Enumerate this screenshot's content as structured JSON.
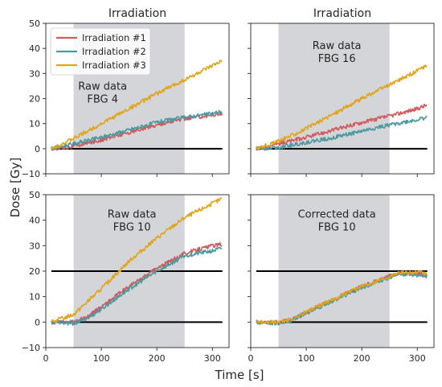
{
  "figure": {
    "ylabel": "Dose [Gy]",
    "xlabel": "Time [s]"
  },
  "colors": {
    "series1": "#d05a5e",
    "series2": "#4a9aa0",
    "series3": "#e0a51c",
    "band": "#d4d5d8",
    "reference": "#000000"
  },
  "chart_data": [
    {
      "type": "line",
      "title": "Irradiation",
      "annotation": [
        "Raw data",
        "FBG 4"
      ],
      "xlim": [
        0,
        330
      ],
      "ylim": [
        -10,
        50
      ],
      "xticks": [
        0,
        100,
        200,
        300
      ],
      "yticks": [
        -10,
        0,
        10,
        20,
        30,
        40,
        50
      ],
      "show_xtick_labels": false,
      "show_ytick_labels": true,
      "shaded_interval": [
        50,
        250
      ],
      "reference_lines": [
        0
      ],
      "legend": {
        "position": "top-left",
        "entries": [
          "Irradiation #1",
          "Irradiation #2",
          "Irradiation #3"
        ]
      },
      "series": [
        {
          "name": "Irradiation #1",
          "points": [
            [
              10,
              0
            ],
            [
              50,
              1
            ],
            [
              100,
              3.5
            ],
            [
              150,
              6.5
            ],
            [
              200,
              9.5
            ],
            [
              250,
              12
            ],
            [
              300,
              13.5
            ],
            [
              318,
              14
            ]
          ]
        },
        {
          "name": "Irradiation #2",
          "points": [
            [
              10,
              0
            ],
            [
              50,
              2
            ],
            [
              100,
              4.5
            ],
            [
              150,
              7.5
            ],
            [
              200,
              10.5
            ],
            [
              250,
              12.5
            ],
            [
              300,
              14
            ],
            [
              318,
              15
            ]
          ]
        },
        {
          "name": "Irradiation #3",
          "points": [
            [
              10,
              0
            ],
            [
              50,
              4
            ],
            [
              100,
              10
            ],
            [
              150,
              16
            ],
            [
              200,
              22
            ],
            [
              250,
              27.5
            ],
            [
              300,
              33
            ],
            [
              318,
              35
            ]
          ]
        }
      ]
    },
    {
      "type": "line",
      "title": "Irradiation",
      "annotation": [
        "Raw data",
        "FBG 16"
      ],
      "xlim": [
        0,
        330
      ],
      "ylim": [
        -10,
        50
      ],
      "xticks": [
        0,
        100,
        200,
        300
      ],
      "yticks": [
        -10,
        0,
        10,
        20,
        30,
        40,
        50
      ],
      "show_xtick_labels": false,
      "show_ytick_labels": false,
      "shaded_interval": [
        50,
        250
      ],
      "reference_lines": [
        0
      ],
      "legend": null,
      "series": [
        {
          "name": "Irradiation #1",
          "points": [
            [
              10,
              0
            ],
            [
              50,
              2
            ],
            [
              100,
              4.5
            ],
            [
              150,
              7.5
            ],
            [
              200,
              10.5
            ],
            [
              250,
              13
            ],
            [
              300,
              16
            ],
            [
              318,
              17.5
            ]
          ]
        },
        {
          "name": "Irradiation #2",
          "points": [
            [
              10,
              0
            ],
            [
              50,
              0.5
            ],
            [
              100,
              2.5
            ],
            [
              150,
              4.5
            ],
            [
              200,
              7
            ],
            [
              250,
              9.5
            ],
            [
              300,
              11.5
            ],
            [
              318,
              12.5
            ]
          ]
        },
        {
          "name": "Irradiation #3",
          "points": [
            [
              10,
              0
            ],
            [
              50,
              3
            ],
            [
              100,
              8
            ],
            [
              150,
              14
            ],
            [
              200,
              20
            ],
            [
              250,
              25.5
            ],
            [
              300,
              31
            ],
            [
              318,
              33.5
            ]
          ]
        }
      ]
    },
    {
      "type": "line",
      "title": "",
      "annotation": [
        "Raw data",
        "FBG 10"
      ],
      "xlim": [
        0,
        330
      ],
      "ylim": [
        -10,
        50
      ],
      "xticks": [
        0,
        100,
        200,
        300
      ],
      "yticks": [
        -10,
        0,
        10,
        20,
        30,
        40,
        50
      ],
      "show_xtick_labels": true,
      "show_ytick_labels": true,
      "shaded_interval": [
        50,
        250
      ],
      "reference_lines": [
        0,
        20
      ],
      "legend": null,
      "series": [
        {
          "name": "Irradiation #1",
          "points": [
            [
              10,
              0
            ],
            [
              50,
              0
            ],
            [
              75,
              2
            ],
            [
              100,
              6
            ],
            [
              150,
              14
            ],
            [
              200,
              21
            ],
            [
              250,
              27
            ],
            [
              300,
              30
            ],
            [
              318,
              30.5
            ]
          ]
        },
        {
          "name": "Irradiation #2",
          "points": [
            [
              10,
              0
            ],
            [
              50,
              -0.5
            ],
            [
              75,
              1.5
            ],
            [
              100,
              5
            ],
            [
              150,
              13
            ],
            [
              200,
              20
            ],
            [
              250,
              26
            ],
            [
              300,
              28
            ],
            [
              318,
              29
            ]
          ]
        },
        {
          "name": "Irradiation #3",
          "points": [
            [
              10,
              0
            ],
            [
              50,
              3
            ],
            [
              75,
              8
            ],
            [
              100,
              13
            ],
            [
              150,
              24
            ],
            [
              200,
              33
            ],
            [
              250,
              41
            ],
            [
              300,
              46.5
            ],
            [
              318,
              48.5
            ]
          ]
        }
      ]
    },
    {
      "type": "line",
      "title": "",
      "annotation": [
        "Corrected data",
        "FBG 10"
      ],
      "xlim": [
        0,
        330
      ],
      "ylim": [
        -10,
        50
      ],
      "xticks": [
        0,
        100,
        200,
        300
      ],
      "yticks": [
        -10,
        0,
        10,
        20,
        30,
        40,
        50
      ],
      "show_xtick_labels": true,
      "show_ytick_labels": false,
      "shaded_interval": [
        50,
        250
      ],
      "reference_lines": [
        0,
        20
      ],
      "legend": null,
      "series": [
        {
          "name": "Irradiation #1",
          "points": [
            [
              10,
              0
            ],
            [
              50,
              0
            ],
            [
              75,
              1
            ],
            [
              100,
              4
            ],
            [
              150,
              9
            ],
            [
              200,
              14
            ],
            [
              250,
              18
            ],
            [
              265,
              19
            ],
            [
              300,
              19
            ],
            [
              318,
              18.5
            ]
          ]
        },
        {
          "name": "Irradiation #2",
          "points": [
            [
              10,
              0
            ],
            [
              50,
              -0.5
            ],
            [
              75,
              0.8
            ],
            [
              100,
              3.5
            ],
            [
              150,
              8.5
            ],
            [
              200,
              13.5
            ],
            [
              250,
              17.5
            ],
            [
              265,
              19
            ],
            [
              300,
              18.5
            ],
            [
              318,
              18
            ]
          ]
        },
        {
          "name": "Irradiation #3",
          "points": [
            [
              10,
              0
            ],
            [
              50,
              0
            ],
            [
              75,
              1.2
            ],
            [
              100,
              4
            ],
            [
              150,
              9
            ],
            [
              200,
              14
            ],
            [
              250,
              18
            ],
            [
              265,
              19.5
            ],
            [
              300,
              19.5
            ],
            [
              318,
              19
            ]
          ]
        }
      ]
    }
  ]
}
